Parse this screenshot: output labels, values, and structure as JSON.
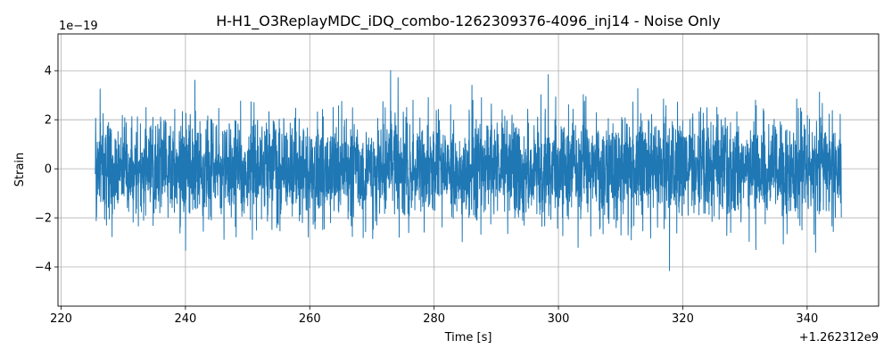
{
  "chart_data": {
    "type": "line",
    "title": "H-H1_O3ReplayMDC_iDQ_combo-1262309376-4096_inj14 - Noise Only",
    "xlabel": "Time [s]",
    "ylabel": "Strain",
    "x_offset_label": "+1.262312e9",
    "y_scale_label": "1e−19",
    "xlim": [
      219.5,
      351.5
    ],
    "ylim": [
      -5.6,
      5.5
    ],
    "x_ticks": [
      220,
      240,
      260,
      280,
      300,
      320,
      340
    ],
    "x_tick_labels": [
      "220",
      "240",
      "260",
      "280",
      "300",
      "320",
      "340"
    ],
    "y_ticks": [
      -4,
      -2,
      0,
      2,
      4
    ],
    "y_tick_labels": [
      "−4",
      "−2",
      "0",
      "2",
      "4"
    ],
    "grid": true,
    "series": [
      {
        "color": "#1f77b4",
        "x_range": [
          225.5,
          345.5
        ],
        "y_min": -5.1,
        "y_max": 5.0,
        "y_std": 1.05
      }
    ]
  }
}
